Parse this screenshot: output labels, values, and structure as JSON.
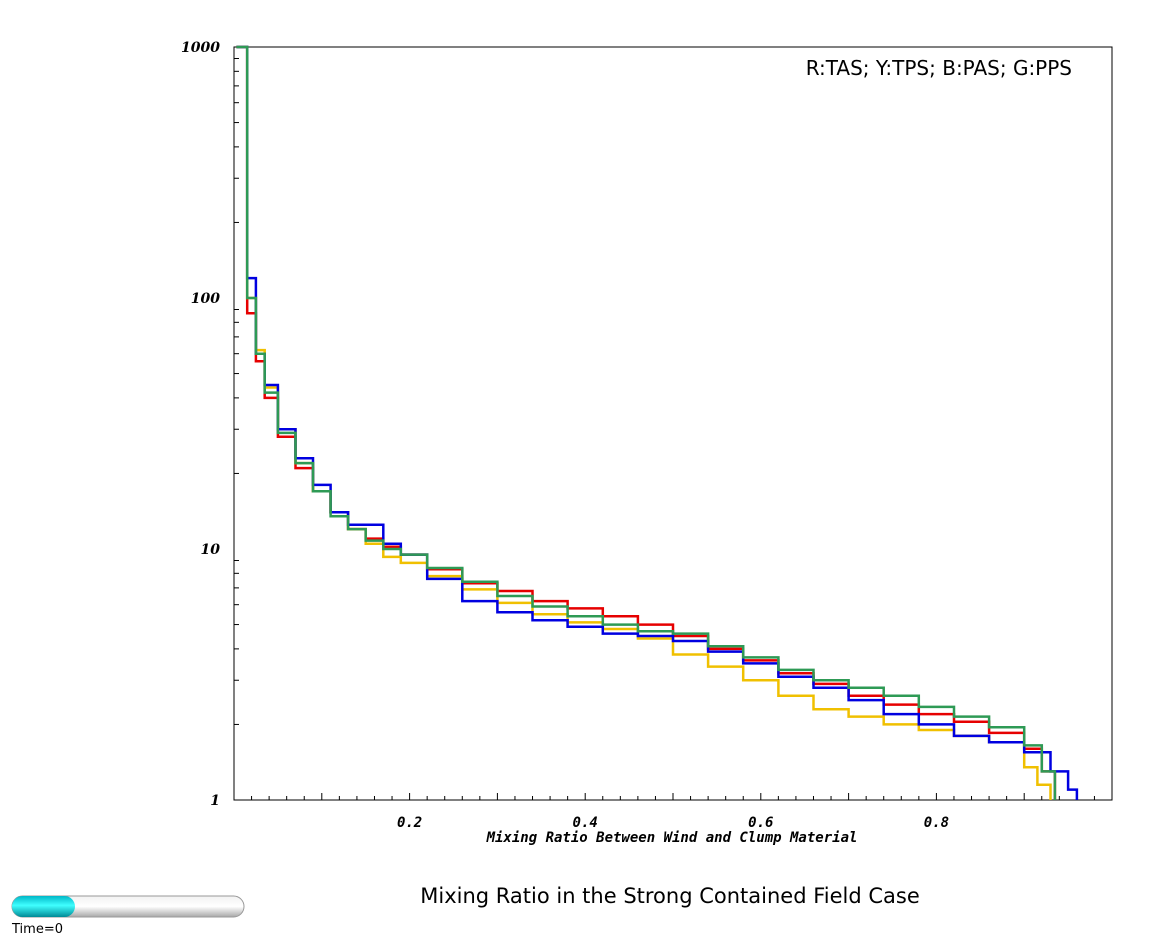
{
  "chart_data": {
    "type": "line",
    "step": true,
    "title": "Mixing Ratio in the Strong Contained Field Case",
    "xlabel": "Mixing Ratio Between Wind and Clump Material",
    "ylabel": "",
    "legend_text": "R:TAS; Y:TPS; B:PAS; G:PPS",
    "legend_position": "top-right",
    "yscale": "log",
    "xlim": [
      0,
      1
    ],
    "ylim": [
      1,
      1000
    ],
    "grid": false,
    "x_ticks": [
      0.2,
      0.4,
      0.6,
      0.8
    ],
    "x_tick_labels": [
      "0.2",
      "0.4",
      "0.6",
      "0.8"
    ],
    "y_ticks": [
      1,
      10,
      100,
      1000
    ],
    "y_tick_labels": [
      "1",
      "10",
      "100",
      "1000"
    ],
    "series": [
      {
        "color": "#e60000",
        "x": [
          0.005,
          0.015,
          0.025,
          0.035,
          0.05,
          0.07,
          0.09,
          0.11,
          0.13,
          0.15,
          0.17,
          0.19,
          0.22,
          0.26,
          0.3,
          0.34,
          0.38,
          0.42,
          0.46,
          0.5,
          0.54,
          0.58,
          0.62,
          0.66,
          0.7,
          0.74,
          0.78,
          0.82,
          0.86,
          0.9,
          0.92,
          0.935
        ],
        "values": [
          1000,
          87,
          56,
          40,
          28,
          21,
          17,
          14,
          12,
          11,
          10.2,
          9.5,
          8.3,
          7.3,
          6.8,
          6.2,
          5.8,
          5.4,
          5.0,
          4.5,
          4.0,
          3.6,
          3.2,
          2.9,
          2.6,
          2.4,
          2.2,
          2.05,
          1.85,
          1.6,
          1.3,
          1.0
        ]
      },
      {
        "color": "#f0c000",
        "x": [
          0.005,
          0.015,
          0.025,
          0.035,
          0.05,
          0.07,
          0.09,
          0.11,
          0.13,
          0.15,
          0.17,
          0.19,
          0.22,
          0.26,
          0.3,
          0.34,
          0.38,
          0.42,
          0.46,
          0.5,
          0.54,
          0.58,
          0.62,
          0.66,
          0.7,
          0.74,
          0.78,
          0.82,
          0.86,
          0.9,
          0.915,
          0.93
        ],
        "values": [
          1000,
          100,
          62,
          44,
          30,
          22,
          17,
          14,
          12,
          10.5,
          9.3,
          8.8,
          7.8,
          6.9,
          6.1,
          5.5,
          5.1,
          4.8,
          4.4,
          3.8,
          3.4,
          3.0,
          2.6,
          2.3,
          2.15,
          2.0,
          1.9,
          1.8,
          1.7,
          1.35,
          1.15,
          1.0
        ]
      },
      {
        "color": "#0000e0",
        "x": [
          0.005,
          0.015,
          0.025,
          0.035,
          0.05,
          0.07,
          0.09,
          0.11,
          0.13,
          0.15,
          0.17,
          0.19,
          0.22,
          0.26,
          0.3,
          0.34,
          0.38,
          0.42,
          0.46,
          0.5,
          0.54,
          0.58,
          0.62,
          0.66,
          0.7,
          0.74,
          0.78,
          0.82,
          0.86,
          0.9,
          0.93,
          0.95,
          0.96
        ],
        "values": [
          1000,
          120,
          60,
          45,
          30,
          23,
          18,
          14,
          12.5,
          12.5,
          10.5,
          9.5,
          7.6,
          6.2,
          5.6,
          5.2,
          4.9,
          4.6,
          4.5,
          4.3,
          3.9,
          3.5,
          3.1,
          2.8,
          2.5,
          2.2,
          2.0,
          1.8,
          1.7,
          1.55,
          1.3,
          1.1,
          1.0
        ]
      },
      {
        "color": "#2e9a55",
        "x": [
          0.005,
          0.015,
          0.025,
          0.035,
          0.05,
          0.07,
          0.09,
          0.11,
          0.13,
          0.15,
          0.17,
          0.19,
          0.22,
          0.26,
          0.3,
          0.34,
          0.38,
          0.42,
          0.46,
          0.5,
          0.54,
          0.58,
          0.62,
          0.66,
          0.7,
          0.74,
          0.78,
          0.82,
          0.86,
          0.9,
          0.92,
          0.935
        ],
        "values": [
          1000,
          100,
          60,
          42,
          29,
          22,
          17,
          13.5,
          12,
          10.8,
          10,
          9.5,
          8.4,
          7.4,
          6.5,
          5.9,
          5.4,
          5.0,
          4.7,
          4.6,
          4.1,
          3.7,
          3.3,
          3.0,
          2.8,
          2.6,
          2.35,
          2.15,
          1.95,
          1.65,
          1.3,
          1.0
        ]
      }
    ]
  },
  "time_slider": {
    "label": "Time=0",
    "progress": 0.27
  }
}
